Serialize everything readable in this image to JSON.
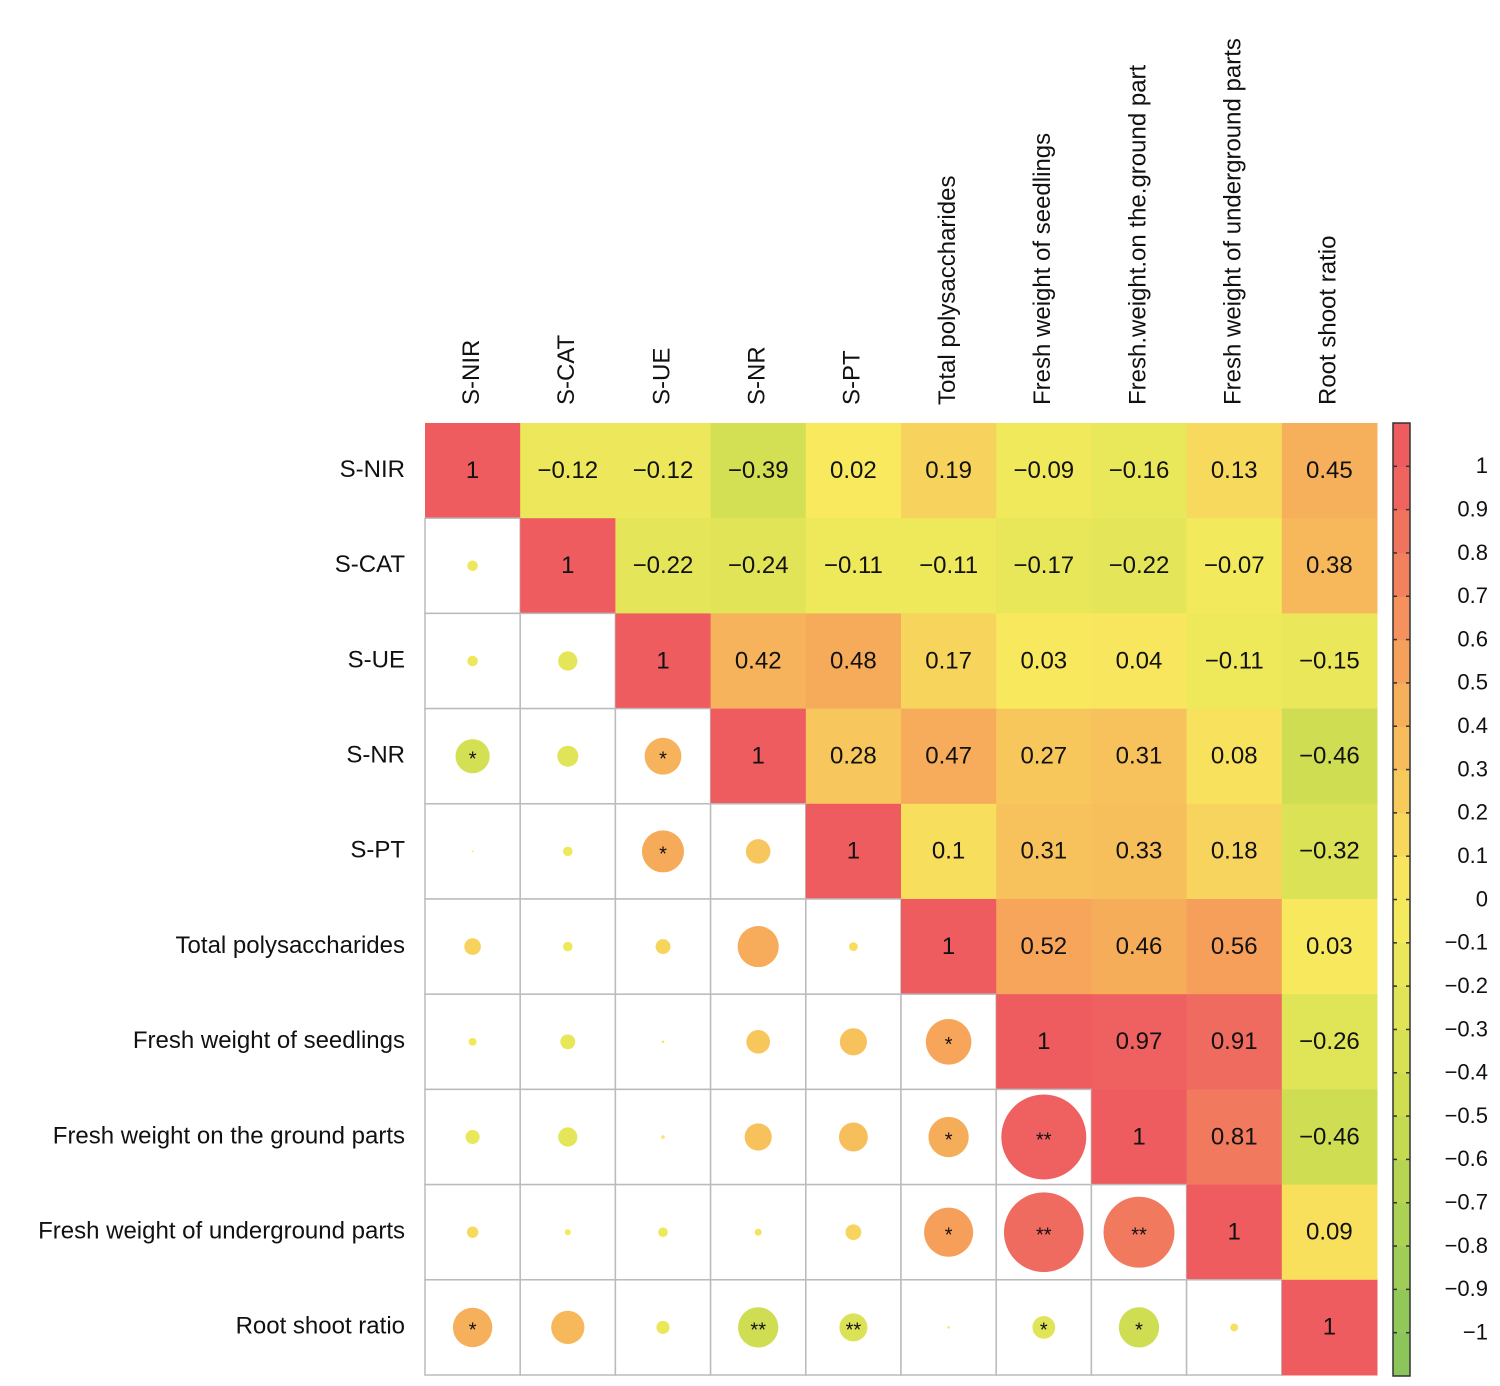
{
  "chart_data": {
    "type": "corrplot",
    "row_labels": [
      "S-NIR",
      "S-CAT",
      "S-UE",
      "S-NR",
      "S-PT",
      "Total polysaccharides",
      "Fresh weight of seedlings",
      "Fresh weight on the ground parts",
      "Fresh weight of underground parts",
      "Root shoot ratio"
    ],
    "col_labels": [
      "S-NIR",
      "S-CAT",
      "S-UE",
      "S-NR",
      "S-PT",
      "Total polysaccharides",
      "Fresh weight of seedlings",
      "Fresh.weight.on the.ground part",
      "Fresh weight of underground parts",
      "Root shoot ratio"
    ],
    "values": [
      [
        1,
        -0.12,
        -0.12,
        -0.39,
        0.02,
        0.19,
        -0.09,
        -0.16,
        0.13,
        0.45
      ],
      [
        -0.12,
        1,
        -0.22,
        -0.24,
        -0.11,
        -0.11,
        -0.17,
        -0.22,
        -0.07,
        0.38
      ],
      [
        -0.12,
        -0.22,
        1,
        0.42,
        0.48,
        0.17,
        0.03,
        0.04,
        -0.11,
        -0.15
      ],
      [
        -0.39,
        -0.24,
        0.42,
        1,
        0.28,
        0.47,
        0.27,
        0.31,
        0.08,
        -0.46
      ],
      [
        0.02,
        -0.11,
        0.48,
        0.28,
        1,
        0.1,
        0.31,
        0.33,
        0.18,
        -0.32
      ],
      [
        0.19,
        -0.11,
        0.17,
        0.47,
        0.1,
        1,
        0.52,
        0.46,
        0.56,
        0.03
      ],
      [
        -0.09,
        -0.17,
        0.03,
        0.27,
        0.31,
        0.52,
        1,
        0.97,
        0.91,
        -0.26
      ],
      [
        -0.16,
        -0.22,
        0.04,
        0.31,
        0.33,
        0.46,
        0.97,
        1,
        0.81,
        -0.46
      ],
      [
        0.13,
        -0.07,
        -0.11,
        0.08,
        0.18,
        0.56,
        0.91,
        0.81,
        1,
        0.09
      ],
      [
        0.45,
        0.38,
        -0.15,
        -0.46,
        -0.32,
        0.03,
        -0.26,
        -0.46,
        0.09,
        1
      ]
    ],
    "value_labels": [
      [
        "1",
        "−0.12",
        "−0.12",
        "−0.39",
        "0.02",
        "0.19",
        "−0.09",
        "−0.16",
        "0.13",
        "0.45"
      ],
      [
        null,
        "1",
        "−0.22",
        "−0.24",
        "−0.11",
        "−0.11",
        "−0.17",
        "−0.22",
        "−0.07",
        "0.38"
      ],
      [
        null,
        null,
        "1",
        "0.42",
        "0.48",
        "0.17",
        "0.03",
        "0.04",
        "−0.11",
        "−0.15"
      ],
      [
        null,
        null,
        null,
        "1",
        "0.28",
        "0.47",
        "0.27",
        "0.31",
        "0.08",
        "−0.46"
      ],
      [
        null,
        null,
        null,
        null,
        "1",
        "0.1",
        "0.31",
        "0.33",
        "0.18",
        "−0.32"
      ],
      [
        null,
        null,
        null,
        null,
        null,
        "1",
        "0.52",
        "0.46",
        "0.56",
        "0.03"
      ],
      [
        null,
        null,
        null,
        null,
        null,
        null,
        "1",
        "0.97",
        "0.91",
        "−0.26"
      ],
      [
        null,
        null,
        null,
        null,
        null,
        null,
        null,
        "1",
        "0.81",
        "−0.46"
      ],
      [
        null,
        null,
        null,
        null,
        null,
        null,
        null,
        null,
        "1",
        "0.09"
      ],
      [
        null,
        null,
        null,
        null,
        null,
        null,
        null,
        null,
        null,
        "1"
      ]
    ],
    "significance": [
      [
        null,
        null,
        null,
        null,
        null,
        null,
        null,
        null,
        null,
        null
      ],
      [
        null,
        null,
        null,
        null,
        null,
        null,
        null,
        null,
        null,
        null
      ],
      [
        null,
        null,
        null,
        null,
        null,
        null,
        null,
        null,
        null,
        null
      ],
      [
        "*",
        null,
        "*",
        null,
        null,
        null,
        null,
        null,
        null,
        null
      ],
      [
        null,
        null,
        "*",
        null,
        null,
        null,
        null,
        null,
        null,
        null
      ],
      [
        null,
        null,
        null,
        null,
        null,
        null,
        null,
        null,
        null,
        null
      ],
      [
        null,
        null,
        null,
        null,
        null,
        "*",
        null,
        null,
        null,
        null
      ],
      [
        null,
        null,
        null,
        null,
        null,
        "*",
        "**",
        null,
        null,
        null
      ],
      [
        null,
        null,
        null,
        null,
        null,
        "*",
        "**",
        "**",
        null,
        null
      ],
      [
        "*",
        null,
        null,
        "**",
        "**",
        null,
        "*",
        "*",
        null,
        null
      ]
    ],
    "colorscale": [
      [
        -1,
        "#8cc65a"
      ],
      [
        -0.5,
        "#cadc50"
      ],
      [
        0,
        "#f8ec5e"
      ],
      [
        0.5,
        "#f6a85a"
      ],
      [
        1,
        "#ee5c60"
      ]
    ],
    "colorbar_lim": [
      -1.1,
      1.1
    ],
    "colorbar_ticks": [
      1,
      0.9,
      0.8,
      0.7,
      0.6,
      0.5,
      0.4,
      0.3,
      0.2,
      0.1,
      0,
      {
        "value": -0.1,
        "label": "−0.1"
      },
      {
        "value": -0.2,
        "label": "−0.2"
      },
      {
        "value": -0.3,
        "label": "−0.3"
      },
      {
        "value": -0.4,
        "label": "−0.4"
      },
      {
        "value": -0.5,
        "label": "−0.5"
      },
      {
        "value": -0.6,
        "label": "−0.6"
      },
      {
        "value": -0.7,
        "label": "−0.7"
      },
      {
        "value": -0.8,
        "label": "−0.8"
      },
      {
        "value": -0.9,
        "label": "−0.9"
      },
      {
        "value": -1,
        "label": "−1"
      }
    ]
  }
}
